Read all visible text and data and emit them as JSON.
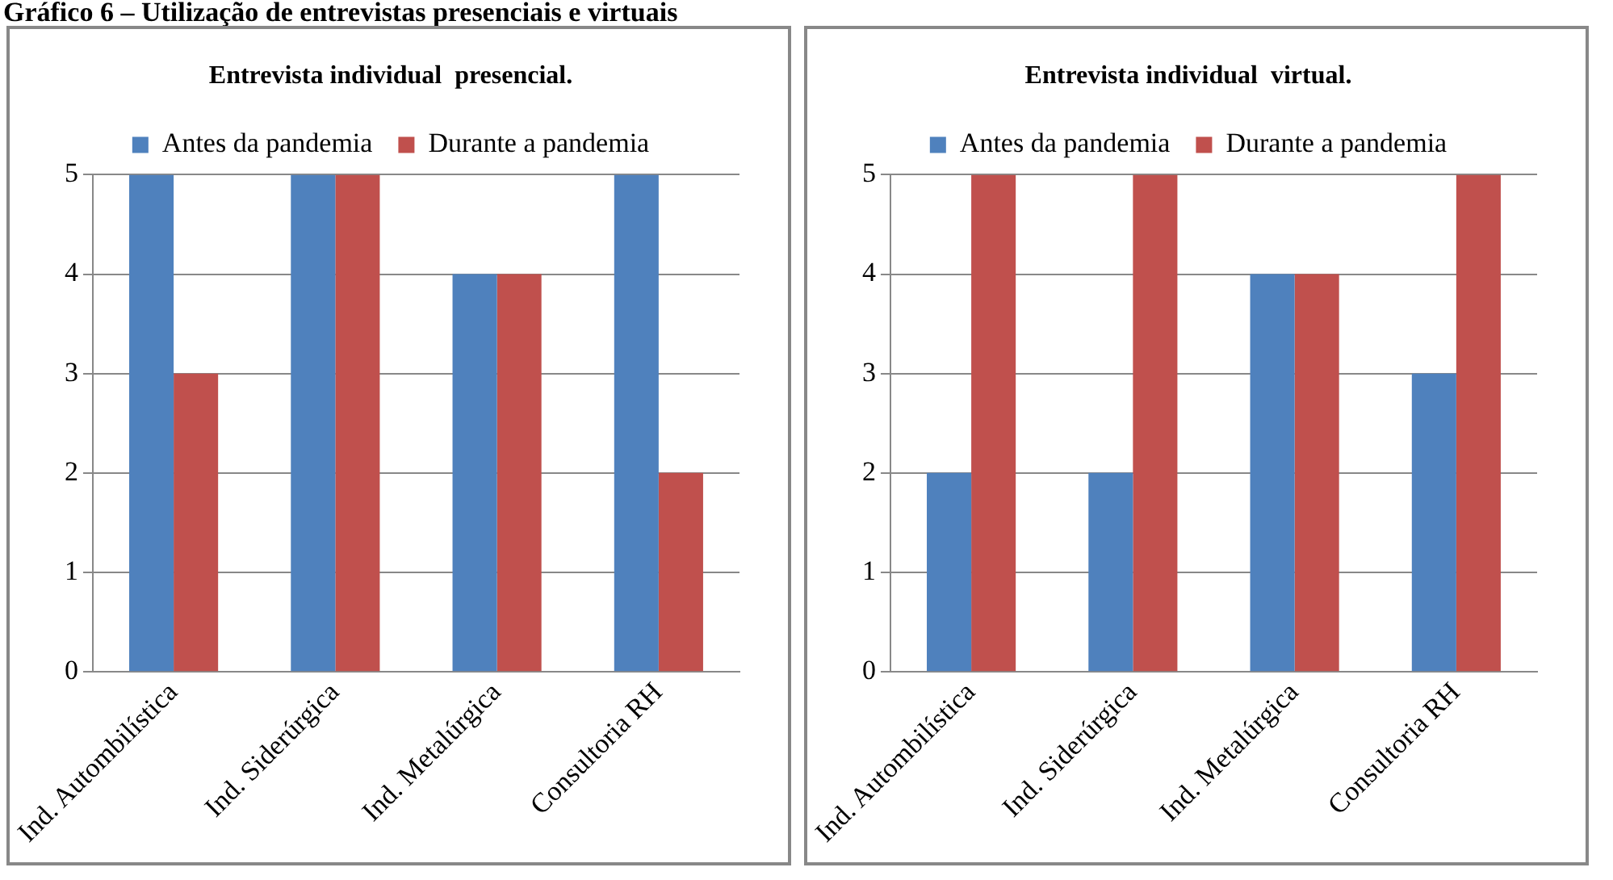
{
  "chart_data": [
    {
      "type": "bar",
      "title": "Entrevista individual  presencial.",
      "annotations": [
        "Gráfico 6 – Utilização de entrevistas presenciais e virtuais"
      ],
      "categories": [
        "Ind. Autombilística",
        "Ind. Siderúrgica",
        "Ind. Metalúrgica",
        "Consultoria RH"
      ],
      "series": [
        {
          "name": "Antes da pandemia",
          "color": "#4f81bd",
          "values": [
            5,
            5,
            4,
            5
          ]
        },
        {
          "name": "Durante a pandemia",
          "color": "#c0504d",
          "values": [
            3,
            5,
            4,
            2
          ]
        }
      ],
      "ylim": [
        0,
        5
      ],
      "yticks": [
        0,
        1,
        2,
        3,
        4,
        5
      ],
      "grid": "y",
      "legend": "top"
    },
    {
      "type": "bar",
      "title": "Entrevista individual  virtual.",
      "categories": [
        "Ind. Autombilística",
        "Ind. Siderúrgica",
        "Ind. Metalúrgica",
        "Consultoria RH"
      ],
      "series": [
        {
          "name": "Antes da pandemia",
          "color": "#4f81bd",
          "values": [
            2,
            2,
            4,
            3
          ]
        },
        {
          "name": "Durante a pandemia",
          "color": "#c0504d",
          "values": [
            5,
            5,
            4,
            5
          ]
        }
      ],
      "ylim": [
        0,
        5
      ],
      "yticks": [
        0,
        1,
        2,
        3,
        4,
        5
      ],
      "grid": "y",
      "legend": "top"
    }
  ]
}
